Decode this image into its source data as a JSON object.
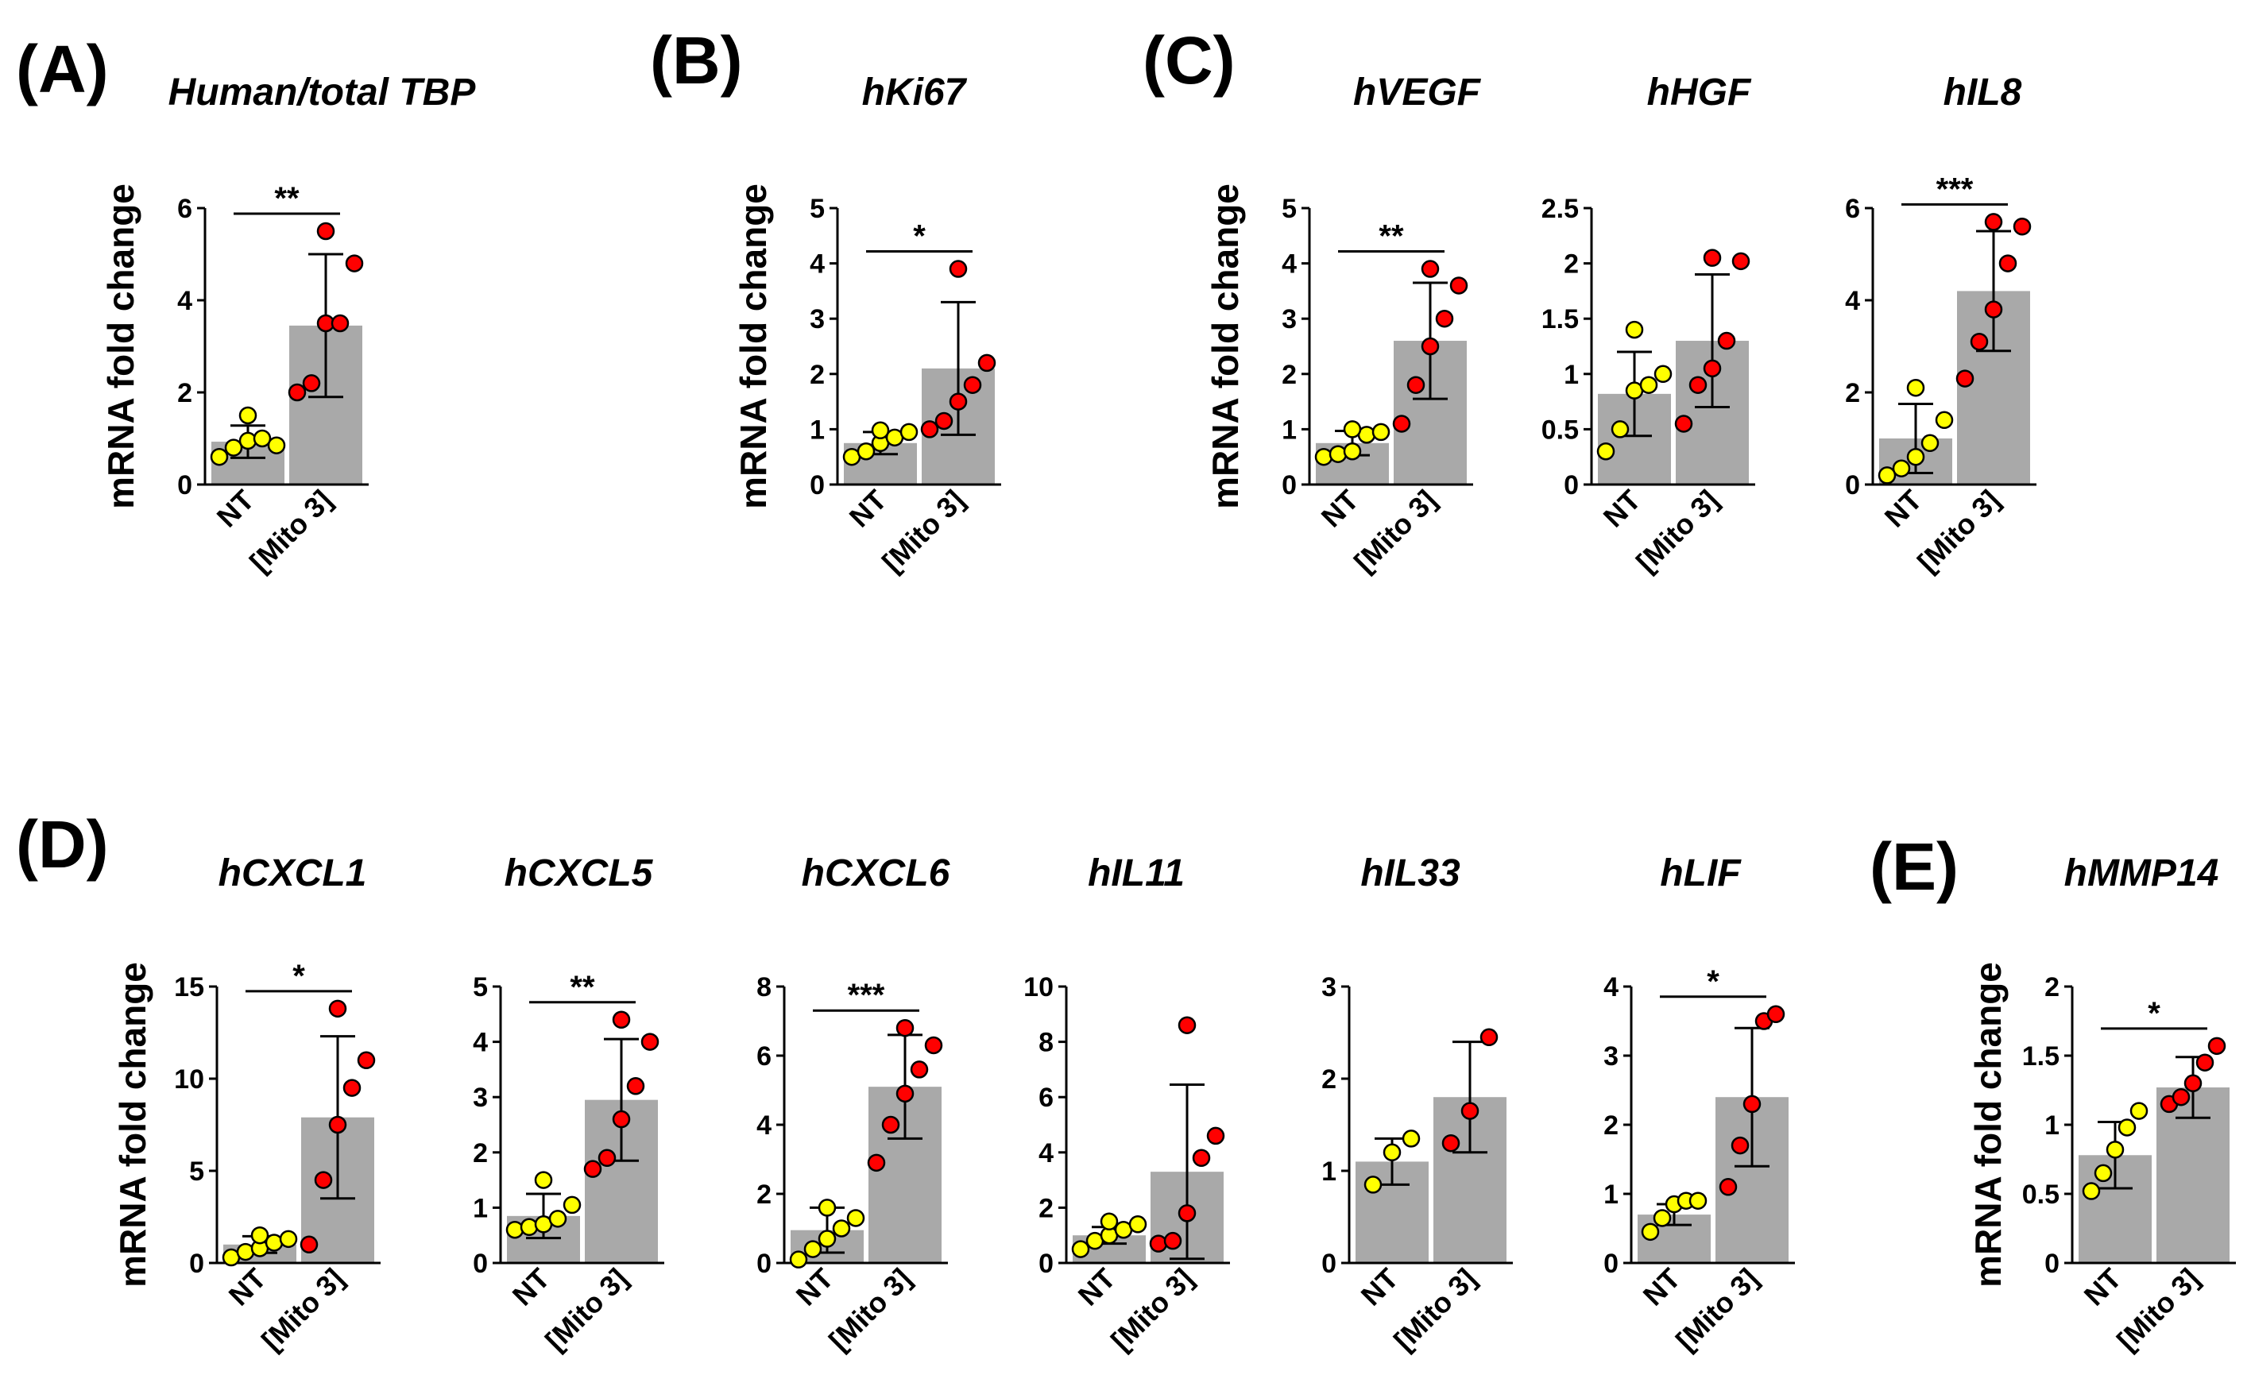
{
  "colors": {
    "bar": "#a9a9a9",
    "nt_point": "#ffff00",
    "mito_point": "#ff0000",
    "ink": "#000000"
  },
  "panel_letters": [
    "(A)",
    "(B)",
    "(C)",
    "(D)",
    "(E)"
  ],
  "chart_data": [
    {
      "type": "bar",
      "title": "Human/total TBP",
      "ylabel": "mRNA fold change",
      "categories": [
        "NT",
        "[Mito 3]"
      ],
      "ylim": [
        0,
        6
      ],
      "yticks": [
        "0",
        "2",
        "4",
        "6"
      ],
      "means": [
        0.93,
        3.45
      ],
      "sd": [
        0.35,
        1.55
      ],
      "points": [
        [
          0.6,
          0.8,
          0.95,
          1.0,
          0.85,
          1.5
        ],
        [
          2.0,
          2.2,
          3.5,
          3.5,
          4.8,
          5.5
        ]
      ],
      "significance": "**"
    },
    {
      "type": "bar",
      "title": "hKi67",
      "ylabel": "mRNA fold change",
      "categories": [
        "NT",
        "[Mito 3]"
      ],
      "ylim": [
        0,
        5
      ],
      "yticks": [
        "0",
        "1",
        "2",
        "3",
        "4",
        "5"
      ],
      "means": [
        0.75,
        2.1
      ],
      "sd": [
        0.2,
        1.2
      ],
      "points": [
        [
          0.5,
          0.6,
          0.75,
          0.85,
          0.95,
          0.98
        ],
        [
          1.0,
          1.15,
          1.5,
          1.8,
          2.2,
          3.9
        ]
      ],
      "significance": "*"
    },
    {
      "type": "bar",
      "title": "hVEGF",
      "ylabel": "mRNA fold change",
      "categories": [
        "NT",
        "[Mito 3]"
      ],
      "ylim": [
        0,
        5
      ],
      "yticks": [
        "0",
        "1",
        "2",
        "3",
        "4",
        "5"
      ],
      "means": [
        0.75,
        2.6
      ],
      "sd": [
        0.22,
        1.05
      ],
      "points": [
        [
          0.5,
          0.55,
          0.6,
          0.9,
          0.95,
          1.0
        ],
        [
          1.1,
          1.8,
          2.5,
          3.0,
          3.6,
          3.9
        ]
      ],
      "significance": "**"
    },
    {
      "type": "bar",
      "title": "hHGF",
      "ylabel": "",
      "categories": [
        "NT",
        "[Mito 3]"
      ],
      "ylim": [
        0,
        2.5
      ],
      "yticks": [
        "0",
        "0.5",
        "1",
        "1.5",
        "2",
        "2.5"
      ],
      "means": [
        0.82,
        1.3
      ],
      "sd": [
        0.38,
        0.6
      ],
      "points": [
        [
          0.3,
          0.5,
          0.85,
          0.9,
          1.0,
          1.4
        ],
        [
          0.55,
          0.9,
          1.05,
          1.3,
          2.02,
          2.05
        ]
      ],
      "significance": ""
    },
    {
      "type": "bar",
      "title": "hIL8",
      "ylabel": "",
      "categories": [
        "NT",
        "[Mito 3]"
      ],
      "ylim": [
        0,
        6
      ],
      "yticks": [
        "0",
        "2",
        "4",
        "6"
      ],
      "means": [
        1.0,
        4.2
      ],
      "sd": [
        0.75,
        1.3
      ],
      "points": [
        [
          0.2,
          0.35,
          0.6,
          0.9,
          1.4,
          2.1
        ],
        [
          2.3,
          3.1,
          3.8,
          4.8,
          5.6,
          5.7
        ]
      ],
      "significance": "***"
    },
    {
      "type": "bar",
      "title": "hCXCL1",
      "ylabel": "mRNA fold change",
      "categories": [
        "NT",
        "[Mito 3]"
      ],
      "ylim": [
        0,
        15
      ],
      "yticks": [
        "0",
        "5",
        "10",
        "15"
      ],
      "means": [
        1.0,
        7.9
      ],
      "sd": [
        0.45,
        4.4
      ],
      "points": [
        [
          0.3,
          0.6,
          0.8,
          1.1,
          1.3,
          1.5
        ],
        [
          1.0,
          4.5,
          7.5,
          9.5,
          11.0,
          13.8
        ]
      ],
      "significance": "*"
    },
    {
      "type": "bar",
      "title": "hCXCL5",
      "ylabel": "",
      "categories": [
        "NT",
        "[Mito 3]"
      ],
      "ylim": [
        0,
        5
      ],
      "yticks": [
        "0",
        "1",
        "2",
        "3",
        "4",
        "5"
      ],
      "means": [
        0.85,
        2.95
      ],
      "sd": [
        0.4,
        1.1
      ],
      "points": [
        [
          0.6,
          0.65,
          0.7,
          0.8,
          1.05,
          1.5
        ],
        [
          1.7,
          1.9,
          2.6,
          3.2,
          4.0,
          4.4
        ]
      ],
      "significance": "**"
    },
    {
      "type": "bar",
      "title": "hCXCL6",
      "ylabel": "",
      "categories": [
        "NT",
        "[Mito 3]"
      ],
      "ylim": [
        0,
        8
      ],
      "yticks": [
        "0",
        "2",
        "4",
        "6",
        "8"
      ],
      "means": [
        0.95,
        5.1
      ],
      "sd": [
        0.65,
        1.5
      ],
      "points": [
        [
          0.1,
          0.4,
          0.7,
          1.0,
          1.3,
          1.6
        ],
        [
          2.9,
          4.0,
          4.9,
          5.6,
          6.3,
          6.8
        ]
      ],
      "significance": "***"
    },
    {
      "type": "bar",
      "title": "hIL11",
      "ylabel": "",
      "categories": [
        "NT",
        "[Mito 3]"
      ],
      "ylim": [
        0,
        10
      ],
      "yticks": [
        "0",
        "2",
        "4",
        "6",
        "8",
        "10"
      ],
      "means": [
        1.0,
        3.3
      ],
      "sd": [
        0.3,
        3.15
      ],
      "points": [
        [
          0.5,
          0.8,
          1.0,
          1.2,
          1.4,
          1.5
        ],
        [
          0.7,
          0.8,
          1.8,
          3.8,
          4.6,
          8.6
        ]
      ],
      "significance": ""
    },
    {
      "type": "bar",
      "title": "hIL33",
      "ylabel": "",
      "categories": [
        "NT",
        "[Mito 3]"
      ],
      "ylim": [
        0,
        3
      ],
      "yticks": [
        "0",
        "1",
        "2",
        "3"
      ],
      "means": [
        1.1,
        1.8
      ],
      "sd": [
        0.25,
        0.6
      ],
      "points": [
        [
          0.85,
          1.2,
          1.35
        ],
        [
          1.3,
          1.65,
          2.45
        ]
      ],
      "significance": ""
    },
    {
      "type": "bar",
      "title": "hLIF",
      "ylabel": "",
      "categories": [
        "NT",
        "[Mito 3]"
      ],
      "ylim": [
        0,
        4
      ],
      "yticks": [
        "0",
        "1",
        "2",
        "3",
        "4"
      ],
      "means": [
        0.7,
        2.4
      ],
      "sd": [
        0.15,
        1.0
      ],
      "points": [
        [
          0.45,
          0.65,
          0.85,
          0.9,
          0.9
        ],
        [
          1.1,
          1.7,
          2.3,
          3.5,
          3.6
        ]
      ],
      "significance": "*"
    },
    {
      "type": "bar",
      "title": "hMMP14",
      "ylabel": "mRNA fold change",
      "categories": [
        "NT",
        "[Mito 3]"
      ],
      "ylim": [
        0,
        2
      ],
      "yticks": [
        "0",
        "0.5",
        "1",
        "1.5",
        "2"
      ],
      "means": [
        0.78,
        1.27
      ],
      "sd": [
        0.24,
        0.22
      ],
      "points": [
        [
          0.52,
          0.65,
          0.82,
          0.98,
          1.1
        ],
        [
          1.15,
          1.2,
          1.3,
          1.45,
          1.57
        ]
      ],
      "significance": "*"
    }
  ]
}
